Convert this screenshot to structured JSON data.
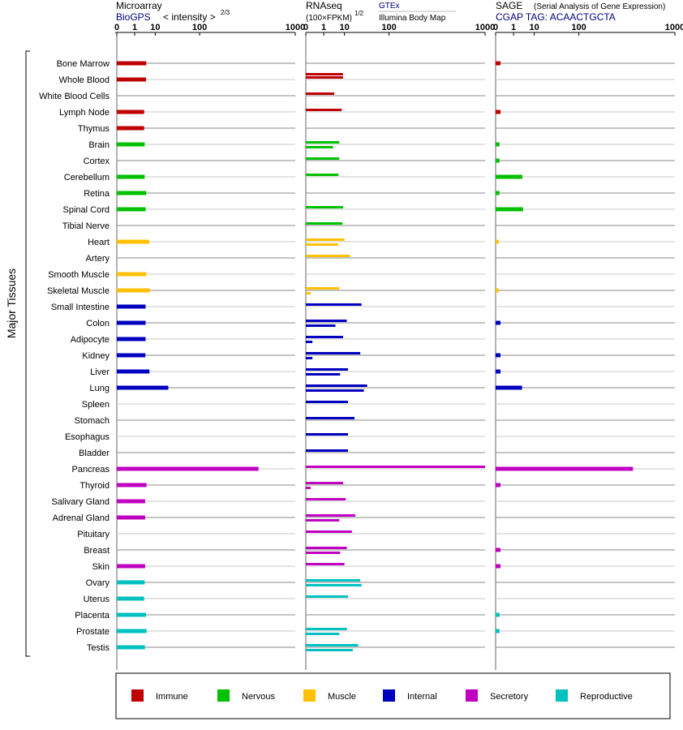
{
  "header": {
    "microarray_title": "Microarray",
    "microarray_source": "BioGPS",
    "microarray_intensity": "< intensity >",
    "microarray_exponent": "2/3",
    "rnaseq_title": "RNAseq",
    "rnaseq_unit": "(100×FPKM)",
    "rnaseq_exponent": "1/2",
    "rnaseq_source": "GTEx",
    "rnaseq_source2": "Illumina Body Map",
    "sage_title": "SAGE",
    "sage_subtitle": "(Serial Analysis of Gene Expression)",
    "sage_tag": "CGAP TAG: ACAACTGCTA"
  },
  "colors": {
    "Immune": "#c00000",
    "Nervous": "#00c000",
    "Muscle": "#ffc000",
    "Internal": "#0000c0",
    "Secretory": "#c000c0",
    "Reproductive": "#00c0c0",
    "link": "#000080"
  },
  "chart_data": {
    "type": "bar",
    "scale": "power",
    "ylabel": "Major Tissues",
    "axis_ticks": [
      "0",
      "1",
      "10",
      "100",
      "1000"
    ],
    "xlim": [
      0,
      1000
    ],
    "legend_placement": "bottom",
    "legend": [
      "Immune",
      "Nervous",
      "Muscle",
      "Internal",
      "Secretory",
      "Reproductive"
    ],
    "categories": [
      "Bone Marrow",
      "Whole Blood",
      "White Blood Cells",
      "Lymph Node",
      "Thymus",
      "Brain",
      "Cortex",
      "Cerebellum",
      "Retina",
      "Spinal Cord",
      "Tibial Nerve",
      "Heart",
      "Artery",
      "Smooth Muscle",
      "Skeletal Muscle",
      "Small Intestine",
      "Colon",
      "Adipocyte",
      "Kidney",
      "Liver",
      "Lung",
      "Spleen",
      "Stomach",
      "Esophagus",
      "Bladder",
      "Pancreas",
      "Thyroid",
      "Salivary Gland",
      "Adrenal Gland",
      "Pituitary",
      "Breast",
      "Skin",
      "Ovary",
      "Uterus",
      "Placenta",
      "Prostate",
      "Testis"
    ],
    "groups": [
      "Immune",
      "Immune",
      "Immune",
      "Immune",
      "Immune",
      "Nervous",
      "Nervous",
      "Nervous",
      "Nervous",
      "Nervous",
      "Nervous",
      "Muscle",
      "Muscle",
      "Muscle",
      "Muscle",
      "Internal",
      "Internal",
      "Internal",
      "Internal",
      "Internal",
      "Internal",
      "Internal",
      "Internal",
      "Internal",
      "Internal",
      "Secretory",
      "Secretory",
      "Secretory",
      "Secretory",
      "Secretory",
      "Secretory",
      "Secretory",
      "Reproductive",
      "Reproductive",
      "Reproductive",
      "Reproductive",
      "Reproductive"
    ],
    "panels": [
      {
        "name": "Microarray",
        "series": [
          {
            "values": [
              4.5,
              4.4,
              null,
              3.6,
              3.6,
              3.8,
              null,
              3.8,
              4.5,
              4.2,
              null,
              6.0,
              null,
              4.5,
              6.3,
              4.2,
              4.2,
              4.2,
              4.1,
              6.1,
              24,
              null,
              null,
              null,
              null,
              500,
              4.6,
              4.0,
              4.0,
              null,
              null,
              4.0,
              3.8,
              3.6,
              4.4,
              4.6,
              3.9
            ]
          }
        ]
      },
      {
        "name": "RNAseq",
        "series": [
          {
            "values": [
              null,
              8.9,
              null,
              null,
              null,
              null,
              null,
              null,
              null,
              null,
              null,
              null,
              null,
              null,
              null,
              null,
              null,
              null,
              null,
              null,
              null,
              null,
              null,
              null,
              null,
              null,
              null,
              null,
              null,
              null,
              null,
              null,
              null,
              null,
              null,
              null,
              null
            ]
          },
          {
            "values": [
              null,
              9,
              4,
              8,
              null,
              6.5,
              6.5,
              6,
              null,
              9,
              8.5,
              10,
              15,
              null,
              6.5,
              30,
              12,
              9,
              28,
              13,
              40,
              13,
              20,
              13,
              13,
              1000,
              9,
              11,
              21,
              17,
              12,
              10,
              28,
              13,
              null,
              12,
              25
            ]
          },
          {
            "values": [
              null,
              null,
              null,
              null,
              null,
              3.5,
              null,
              null,
              null,
              null,
              null,
              6,
              null,
              null,
              0.02,
              null,
              4.5,
              0.05,
              0.05,
              7,
              34,
              null,
              null,
              null,
              null,
              null,
              0.02,
              null,
              6.5,
              null,
              7,
              null,
              30,
              null,
              null,
              6.5,
              18
            ]
          }
        ]
      },
      {
        "name": "SAGE",
        "series": [
          {
            "values": [
              0.02,
              null,
              null,
              0.02,
              null,
              0.01,
              0.01,
              3.3,
              0.01,
              3.6,
              null,
              0.005,
              null,
              null,
              0.005,
              null,
              0.02,
              null,
              0.02,
              0.02,
              3.2,
              null,
              null,
              null,
              null,
              450,
              0.02,
              null,
              null,
              null,
              0.02,
              0.02,
              null,
              null,
              0.01,
              0.01,
              null
            ]
          }
        ]
      }
    ]
  }
}
